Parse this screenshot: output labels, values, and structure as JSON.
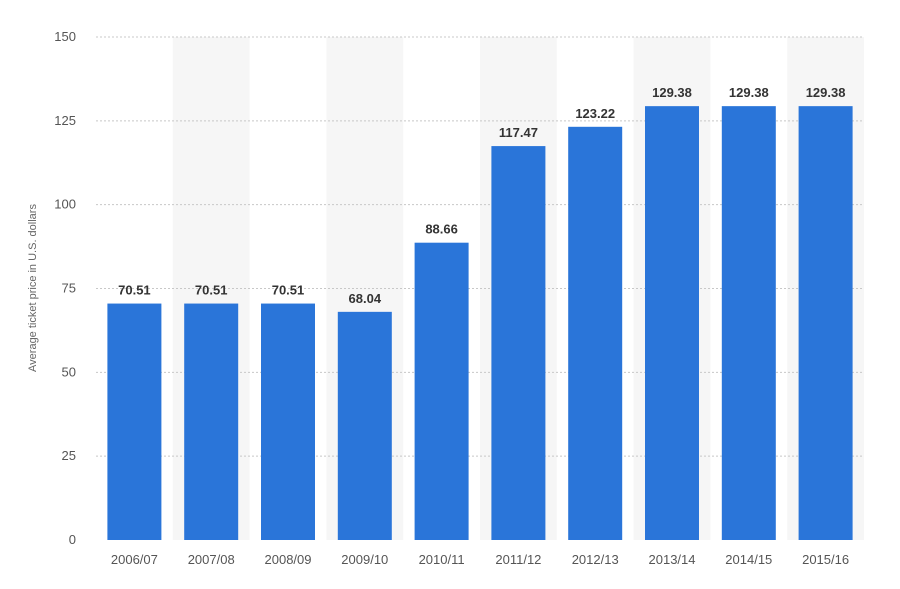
{
  "chart_data": {
    "type": "bar",
    "categories": [
      "2006/07",
      "2007/08",
      "2008/09",
      "2009/10",
      "2010/11",
      "2011/12",
      "2012/13",
      "2013/14",
      "2014/15",
      "2015/16"
    ],
    "values": [
      70.51,
      70.51,
      70.51,
      68.04,
      88.66,
      117.47,
      123.22,
      129.38,
      129.38,
      129.38
    ],
    "data_labels": [
      "70.51",
      "70.51",
      "70.51",
      "68.04",
      "88.66",
      "117.47",
      "123.22",
      "129.38",
      "129.38",
      "129.38"
    ],
    "ylabel": "Average ticket price in U.S. dollars",
    "xlabel": "",
    "ylim": [
      0,
      150
    ],
    "yticks": [
      0,
      25,
      50,
      75,
      100,
      125,
      150
    ],
    "ytick_labels": [
      "0",
      "25",
      "50",
      "75",
      "100",
      "125",
      "150"
    ],
    "grid": true,
    "legend": "none",
    "colors": {
      "bar": "#2a75d9",
      "band": "#f6f6f6",
      "grid": "#c8c8c8"
    }
  }
}
